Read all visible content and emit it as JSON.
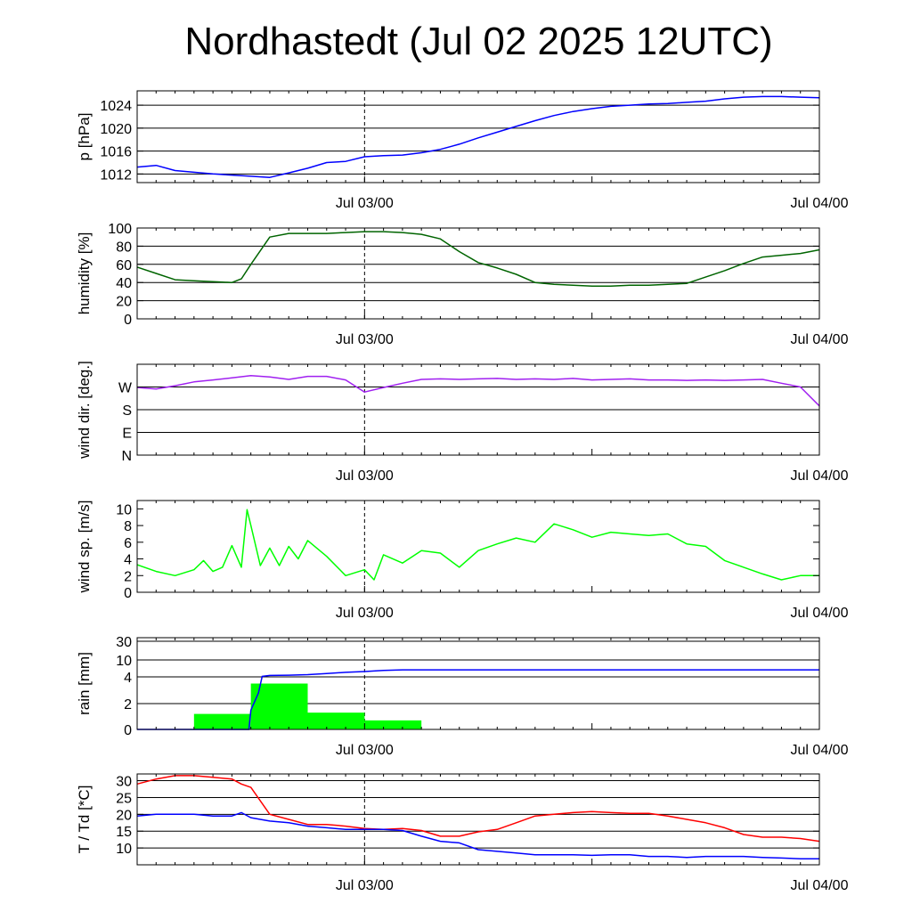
{
  "title": "Nordhastedt (Jul 02 2025 12UTC)",
  "colors": {
    "pressure": "#0000ff",
    "humidity": "#006400",
    "wind_dir": "#a020f0",
    "wind_speed": "#00ff00",
    "rain_bars": "#00ff00",
    "rain_accum": "#0000ff",
    "temperature": "#ff0000",
    "dewpoint": "#0000ff"
  },
  "chart_data": [
    {
      "type": "line",
      "ylabel": "p [hPa]",
      "x_tick_labels": [
        "Jul 03/00",
        "Jul 04/00"
      ],
      "x_unit": "hours since Jul 02 12UTC",
      "xlim": [
        0,
        36
      ],
      "ylim": [
        1010.5,
        1026.5
      ],
      "yticks": [
        1012,
        1016,
        1020,
        1024
      ],
      "ytick_labels": [
        "1012",
        "1016",
        "1020",
        "1024"
      ],
      "grid_y": [
        1012,
        1016,
        1020,
        1024
      ],
      "series": [
        {
          "color_key": "pressure",
          "x": [
            0,
            1,
            2,
            3,
            4,
            5,
            6,
            7,
            8,
            9,
            10,
            11,
            12,
            13,
            14,
            15,
            16,
            17,
            18,
            19,
            20,
            21,
            22,
            23,
            24,
            25,
            26,
            27,
            28,
            29,
            30,
            31,
            32,
            33,
            34,
            35,
            36
          ],
          "y": [
            1013.2,
            1013.5,
            1012.6,
            1012.3,
            1012.0,
            1011.8,
            1011.6,
            1011.4,
            1012.2,
            1013.0,
            1014.0,
            1014.2,
            1015.0,
            1015.2,
            1015.3,
            1015.7,
            1016.3,
            1017.2,
            1018.3,
            1019.3,
            1020.3,
            1021.3,
            1022.2,
            1022.9,
            1023.4,
            1023.8,
            1024.0,
            1024.2,
            1024.3,
            1024.5,
            1024.7,
            1025.1,
            1025.4,
            1025.5,
            1025.5,
            1025.4,
            1025.3
          ]
        }
      ]
    },
    {
      "type": "line",
      "ylabel": "humidity [%]",
      "x_tick_labels": [
        "Jul 03/00",
        "Jul 04/00"
      ],
      "xlim": [
        0,
        36
      ],
      "ylim": [
        0,
        100
      ],
      "yticks": [
        0,
        20,
        40,
        60,
        80,
        100
      ],
      "ytick_labels": [
        "0",
        "20",
        "40",
        "60",
        "80",
        "100"
      ],
      "grid_y": [
        20,
        40,
        60,
        80
      ],
      "series": [
        {
          "color_key": "humidity",
          "x": [
            0,
            1,
            2,
            3,
            4,
            5,
            5.5,
            6,
            7,
            8,
            9,
            10,
            11,
            12,
            13,
            14,
            15,
            16,
            17,
            18,
            19,
            20,
            21,
            22,
            23,
            24,
            25,
            26,
            27,
            28,
            29,
            30,
            31,
            32,
            33,
            34,
            35,
            36
          ],
          "y": [
            57,
            50,
            43,
            42,
            41,
            40,
            44,
            60,
            90,
            94,
            94,
            94,
            95,
            96,
            96,
            95,
            93,
            88,
            74,
            62,
            56,
            49,
            40,
            38,
            37,
            36,
            36,
            37,
            37,
            38,
            39,
            46,
            53,
            61,
            68,
            70,
            72,
            76
          ]
        }
      ]
    },
    {
      "type": "line",
      "ylabel": "wind dir. [deg.]",
      "x_tick_labels": [
        "Jul 03/00",
        "Jul 04/00"
      ],
      "xlim": [
        0,
        36
      ],
      "ylim": [
        0,
        360
      ],
      "yticks": [
        0,
        90,
        180,
        270
      ],
      "ytick_labels": [
        "N",
        "E",
        "S",
        "W"
      ],
      "grid_y": [
        90,
        180,
        270
      ],
      "series": [
        {
          "color_key": "wind_dir",
          "x": [
            0,
            1,
            2,
            3,
            4,
            5,
            6,
            7,
            8,
            9,
            10,
            11,
            12,
            13,
            14,
            15,
            16,
            17,
            18,
            19,
            20,
            21,
            22,
            23,
            24,
            25,
            26,
            27,
            28,
            29,
            30,
            31,
            32,
            33,
            34,
            35,
            36
          ],
          "y": [
            268,
            262,
            275,
            290,
            298,
            306,
            315,
            310,
            300,
            312,
            312,
            298,
            250,
            268,
            285,
            300,
            302,
            300,
            302,
            304,
            300,
            302,
            300,
            304,
            298,
            300,
            302,
            298,
            298,
            296,
            298,
            296,
            298,
            300,
            285,
            270,
            195
          ]
        }
      ]
    },
    {
      "type": "line",
      "ylabel": "wind sp. [m/s]",
      "x_tick_labels": [
        "Jul 03/00",
        "Jul 04/00"
      ],
      "xlim": [
        0,
        36
      ],
      "ylim": [
        0,
        11
      ],
      "yticks": [
        0,
        2,
        4,
        6,
        8,
        10
      ],
      "ytick_labels": [
        "0",
        "2",
        "4",
        "6",
        "8",
        "10"
      ],
      "grid_y": [],
      "series": [
        {
          "color_key": "wind_speed",
          "x": [
            0,
            1,
            2,
            3,
            3.5,
            4,
            4.5,
            5,
            5.5,
            5.8,
            6,
            6.5,
            7,
            7.5,
            8,
            8.5,
            9,
            10,
            11,
            12,
            12.5,
            13,
            14,
            15,
            16,
            17,
            18,
            19,
            20,
            21,
            22,
            23,
            24,
            25,
            26,
            27,
            28,
            29,
            30,
            31,
            32,
            33,
            34,
            35,
            36
          ],
          "y": [
            3.3,
            2.5,
            2.0,
            2.7,
            3.8,
            2.5,
            3.0,
            5.6,
            3.0,
            9.9,
            8.0,
            3.2,
            5.3,
            3.2,
            5.5,
            4.0,
            6.2,
            4.3,
            2.0,
            2.7,
            1.5,
            4.5,
            3.5,
            5.0,
            4.7,
            3.0,
            5.0,
            5.8,
            6.5,
            6.0,
            8.2,
            7.5,
            6.6,
            7.2,
            7.0,
            6.8,
            7.0,
            5.8,
            5.5,
            3.8,
            3.0,
            2.2,
            1.5,
            2.0,
            2.0
          ]
        }
      ]
    },
    {
      "type": "bar",
      "ylabel": "rain [mm]",
      "x_tick_labels": [
        "Jul 03/00",
        "Jul 04/00"
      ],
      "xlim": [
        0,
        36
      ],
      "yticks": [
        0,
        2,
        4,
        10,
        30
      ],
      "ytick_labels": [
        "0",
        "2",
        "4",
        "10",
        "30"
      ],
      "y_scale": "nonlinear",
      "grid_y": [
        2,
        4,
        10,
        30
      ],
      "bars": {
        "color_key": "rain_bars",
        "x_start": [
          3,
          6,
          9,
          12,
          15
        ],
        "x_end": [
          6,
          9,
          12,
          15,
          18
        ],
        "values": [
          1.2,
          3.5,
          1.3,
          0.7,
          0.0
        ]
      },
      "accumulated": {
        "color_key": "rain_accum",
        "x": [
          0,
          5.9,
          6.0,
          6.4,
          6.6,
          7.0,
          8.0,
          9.0,
          10.0,
          11.0,
          12.0,
          13.0,
          14.0,
          36.0
        ],
        "y": [
          0,
          0,
          1.5,
          2.8,
          4.2,
          4.5,
          4.6,
          4.8,
          5.2,
          5.6,
          5.9,
          6.3,
          6.5,
          6.5
        ]
      }
    },
    {
      "type": "line",
      "ylabel": "T / Td [*C]",
      "x_tick_labels": [
        "Jul 03/00",
        "Jul 04/00"
      ],
      "xlim": [
        0,
        36
      ],
      "ylim": [
        5,
        32
      ],
      "yticks": [
        10,
        15,
        20,
        25,
        30
      ],
      "ytick_labels": [
        "10",
        "15",
        "20",
        "25",
        "30"
      ],
      "grid_y": [
        10,
        15,
        20,
        25,
        30
      ],
      "series": [
        {
          "color_key": "temperature",
          "x": [
            0,
            1,
            2,
            3,
            4,
            5,
            5.5,
            6,
            7,
            8,
            9,
            10,
            11,
            12,
            13,
            14,
            15,
            16,
            17,
            18,
            19,
            20,
            21,
            22,
            23,
            24,
            25,
            26,
            27,
            28,
            29,
            30,
            31,
            32,
            33,
            34,
            35,
            36
          ],
          "y": [
            29,
            30.5,
            31.5,
            31.5,
            31,
            30.5,
            29,
            28,
            20,
            18.5,
            17,
            17,
            16.5,
            15.8,
            15.5,
            15.8,
            15.2,
            13.5,
            13.5,
            14.8,
            15.5,
            17.5,
            19.5,
            20,
            20.5,
            20.8,
            20.5,
            20.3,
            20.3,
            19.5,
            18.5,
            17.5,
            16,
            14,
            13.2,
            13.2,
            12.8,
            12
          ]
        },
        {
          "color_key": "dewpoint",
          "x": [
            0,
            1,
            2,
            3,
            4,
            5,
            5.5,
            6,
            7,
            8,
            9,
            10,
            11,
            12,
            13,
            14,
            15,
            16,
            17,
            18,
            19,
            20,
            21,
            22,
            23,
            24,
            25,
            26,
            27,
            28,
            29,
            30,
            31,
            32,
            33,
            34,
            35,
            36
          ],
          "y": [
            19.5,
            20,
            20,
            20,
            19.5,
            19.5,
            20.5,
            19,
            18,
            17.5,
            16.5,
            16,
            15.5,
            15.5,
            15.5,
            15.2,
            13.5,
            12,
            11.5,
            9.5,
            9,
            8.5,
            8,
            8,
            8,
            7.8,
            8,
            8,
            7.5,
            7.5,
            7.2,
            7.5,
            7.5,
            7.5,
            7.2,
            7,
            6.8,
            6.8
          ]
        }
      ]
    }
  ]
}
